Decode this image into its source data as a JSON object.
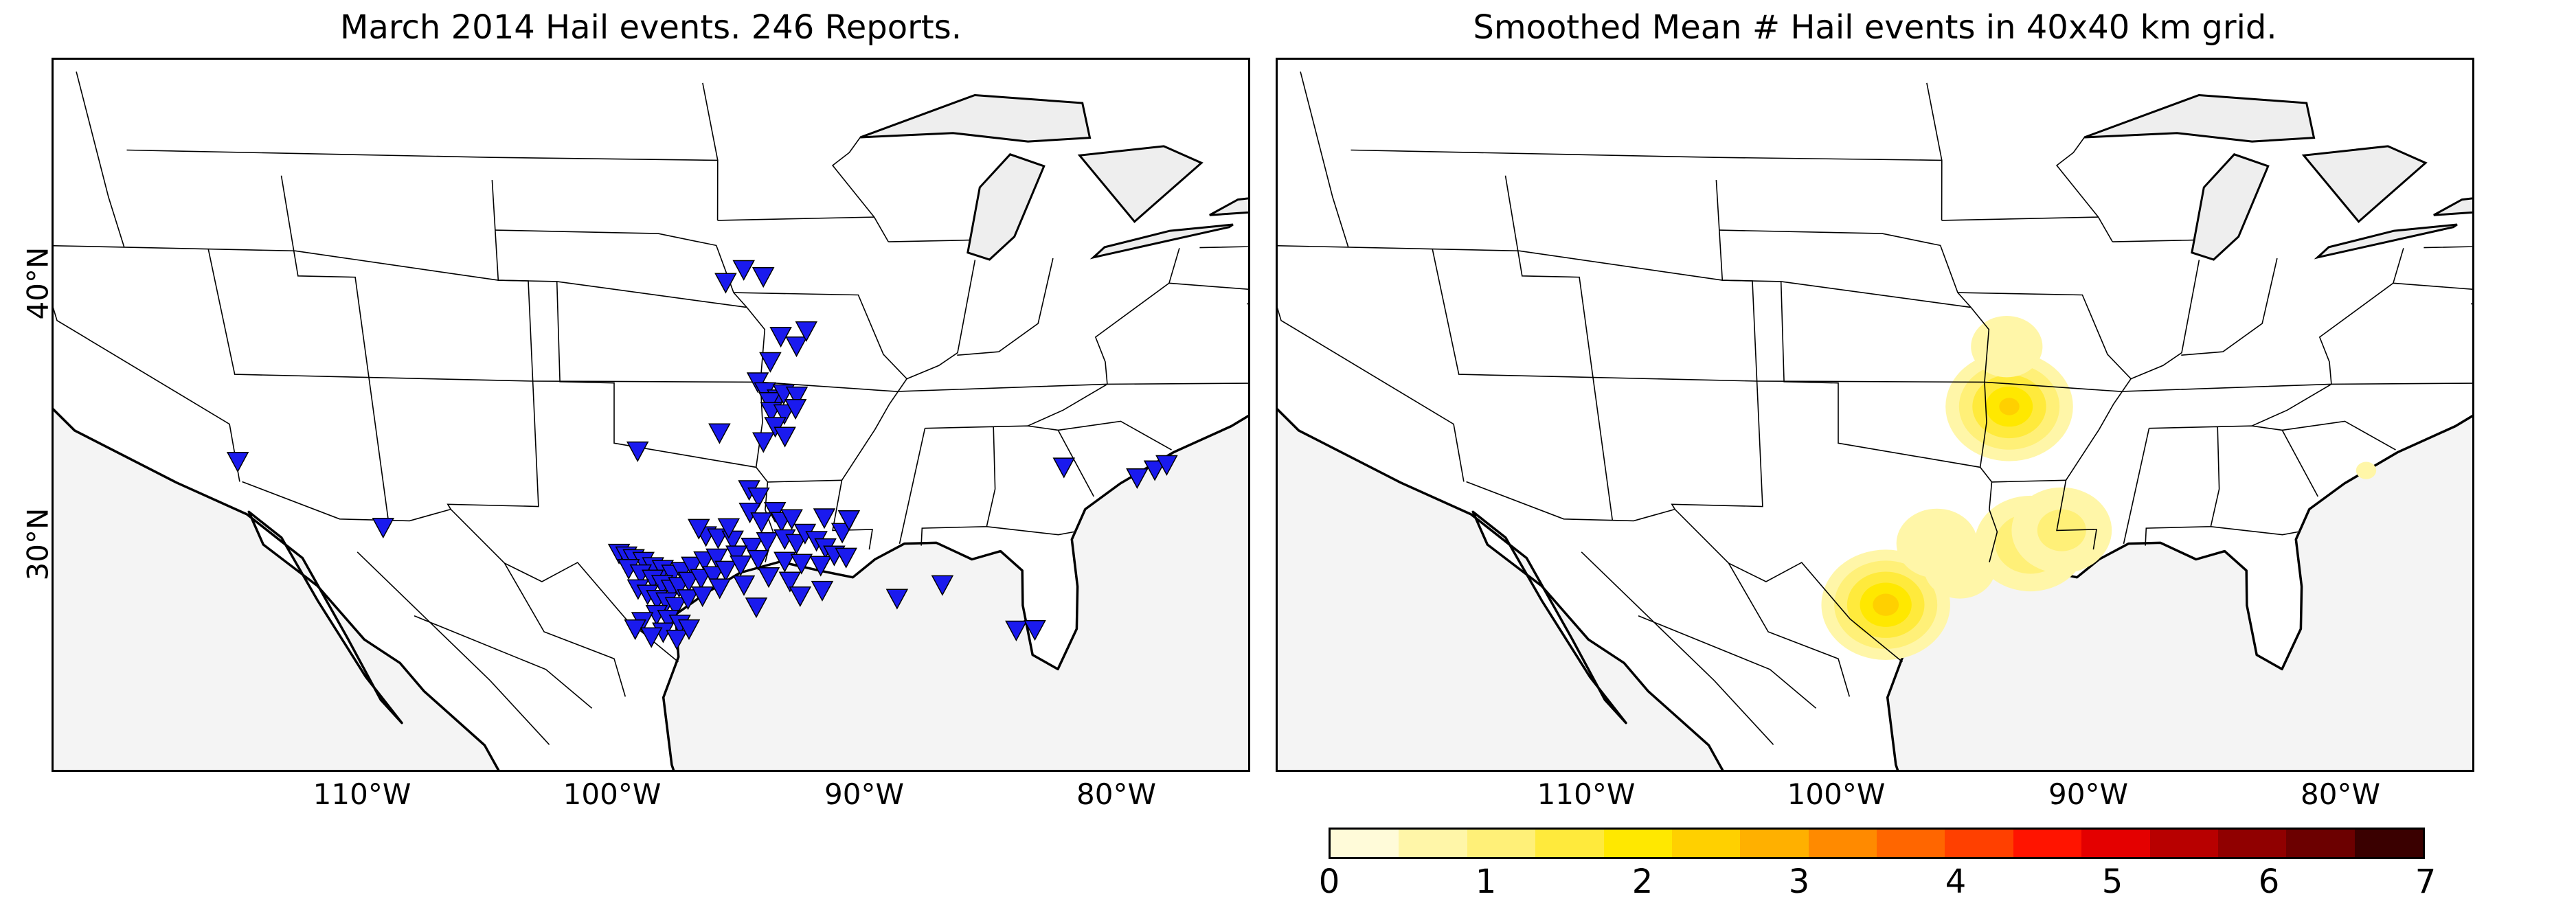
{
  "titles": {
    "left": "March 2014 Hail events. 246 Reports.",
    "right": "Smoothed Mean # Hail events in 40x40 km grid."
  },
  "axes": {
    "lon_labels": [
      "110°W",
      "100°W",
      "90°W",
      "80°W"
    ],
    "lat_labels": [
      "40°N",
      "30°N"
    ]
  },
  "colors": {
    "ocean": "#f4f4f4",
    "land": "#ffffff",
    "marker_fill": "#1a1aee",
    "marker_edge": "#000000",
    "coast": "#000000"
  },
  "colorbar": {
    "ticks": [
      "0",
      "1",
      "2",
      "3",
      "4",
      "5",
      "6",
      "7"
    ],
    "colors": [
      "#fffbd9",
      "#fff6a8",
      "#fff078",
      "#ffea3c",
      "#ffe800",
      "#ffd000",
      "#ffb000",
      "#ff8a00",
      "#ff6600",
      "#ff4000",
      "#ff1400",
      "#e40000",
      "#b80000",
      "#900000",
      "#6c0000",
      "#3a0000"
    ]
  },
  "hail_reports": {
    "count": 246,
    "marker_symbol": "inverted-triangle",
    "locations_lonlat": [
      [
        -114.6,
        33.5
      ],
      [
        -109.3,
        31.0
      ],
      [
        -96.1,
        41.0
      ],
      [
        -95.5,
        41.5
      ],
      [
        -94.8,
        41.2
      ],
      [
        -94.0,
        38.8
      ],
      [
        -93.4,
        38.4
      ],
      [
        -93.1,
        39.0
      ],
      [
        -94.3,
        37.8
      ],
      [
        -94.7,
        37.0
      ],
      [
        -94.4,
        36.6
      ],
      [
        -93.9,
        36.3
      ],
      [
        -94.2,
        36.2
      ],
      [
        -93.7,
        36.5
      ],
      [
        -93.2,
        36.4
      ],
      [
        -94.1,
        35.8
      ],
      [
        -93.6,
        35.7
      ],
      [
        -93.2,
        35.9
      ],
      [
        -93.9,
        35.2
      ],
      [
        -94.3,
        34.6
      ],
      [
        -93.5,
        34.8
      ],
      [
        -96.0,
        35.0
      ],
      [
        -99.1,
        34.3
      ],
      [
        -94.7,
        32.7
      ],
      [
        -94.3,
        32.4
      ],
      [
        -94.6,
        31.8
      ],
      [
        -93.6,
        31.8
      ],
      [
        -93.3,
        31.4
      ],
      [
        -96.3,
        30.9
      ],
      [
        -95.8,
        30.8
      ],
      [
        -95.2,
        30.7
      ],
      [
        -94.4,
        30.4
      ],
      [
        -93.8,
        30.6
      ],
      [
        -93.1,
        30.7
      ],
      [
        -92.6,
        30.5
      ],
      [
        -92.3,
        30.9
      ],
      [
        -91.8,
        30.6
      ],
      [
        -91.4,
        30.3
      ],
      [
        -90.8,
        30.9
      ],
      [
        -90.6,
        31.4
      ],
      [
        -91.6,
        31.5
      ],
      [
        -92.9,
        31.5
      ],
      [
        -94.1,
        31.4
      ],
      [
        -95.4,
        31.2
      ],
      [
        -96.6,
        31.2
      ],
      [
        -95.0,
        30.1
      ],
      [
        -94.1,
        29.9
      ],
      [
        -93.0,
        29.8
      ],
      [
        -92.3,
        29.7
      ],
      [
        -91.5,
        29.6
      ],
      [
        -91.0,
        30.0
      ],
      [
        -90.5,
        29.9
      ],
      [
        -99.8,
        30.2
      ],
      [
        -99.5,
        30.1
      ],
      [
        -99.2,
        30.0
      ],
      [
        -98.8,
        29.9
      ],
      [
        -98.4,
        29.7
      ],
      [
        -98.0,
        29.6
      ],
      [
        -97.6,
        29.4
      ],
      [
        -97.2,
        29.5
      ],
      [
        -96.8,
        29.7
      ],
      [
        -96.3,
        29.9
      ],
      [
        -95.8,
        30.0
      ],
      [
        -99.4,
        29.6
      ],
      [
        -98.9,
        29.4
      ],
      [
        -98.4,
        29.2
      ],
      [
        -98.0,
        29.0
      ],
      [
        -97.6,
        28.8
      ],
      [
        -97.3,
        28.9
      ],
      [
        -96.9,
        29.1
      ],
      [
        -96.4,
        29.2
      ],
      [
        -95.9,
        29.3
      ],
      [
        -95.4,
        29.5
      ],
      [
        -94.8,
        29.7
      ],
      [
        -99.0,
        28.8
      ],
      [
        -98.6,
        28.6
      ],
      [
        -98.2,
        28.4
      ],
      [
        -97.8,
        28.3
      ],
      [
        -97.4,
        28.1
      ],
      [
        -96.9,
        28.4
      ],
      [
        -96.3,
        28.5
      ],
      [
        -95.6,
        28.8
      ],
      [
        -94.6,
        28.9
      ],
      [
        -93.6,
        29.2
      ],
      [
        -92.7,
        29.0
      ],
      [
        -98.2,
        27.8
      ],
      [
        -97.7,
        27.6
      ],
      [
        -97.2,
        27.4
      ],
      [
        -98.8,
        27.5
      ],
      [
        -99.1,
        27.2
      ],
      [
        -97.9,
        27.1
      ],
      [
        -97.3,
        26.8
      ],
      [
        -96.8,
        27.2
      ],
      [
        -98.4,
        26.9
      ],
      [
        -94.0,
        28.0
      ],
      [
        -92.2,
        28.4
      ],
      [
        -91.3,
        28.6
      ],
      [
        -88.1,
        28.2
      ],
      [
        -86.3,
        28.7
      ],
      [
        -82.7,
        26.8
      ],
      [
        -81.9,
        26.8
      ],
      [
        -82.5,
        33.3
      ],
      [
        -79.5,
        32.8
      ],
      [
        -78.9,
        33.1
      ],
      [
        -78.5,
        33.3
      ]
    ]
  },
  "smoothed_field": {
    "units": "mean # hail events per 40x40 km grid cell",
    "blobs": [
      {
        "center_lonlat": [
          -93.6,
          36.0
        ],
        "peak": 2.3
      },
      {
        "center_lonlat": [
          -93.9,
          38.4
        ],
        "peak": 0.8
      },
      {
        "center_lonlat": [
          -92.2,
          30.5
        ],
        "peak": 1.5
      },
      {
        "center_lonlat": [
          -91.0,
          31.0
        ],
        "peak": 1.2
      },
      {
        "center_lonlat": [
          -98.0,
          28.2
        ],
        "peak": 2.4
      },
      {
        "center_lonlat": [
          -96.0,
          30.6
        ],
        "peak": 0.9
      },
      {
        "center_lonlat": [
          -95.0,
          29.6
        ],
        "peak": 0.8
      },
      {
        "center_lonlat": [
          -93.5,
          41.4
        ],
        "peak": 0.4
      },
      {
        "center_lonlat": [
          -79.4,
          33.1
        ],
        "peak": 0.5
      },
      {
        "center_lonlat": [
          -109.2,
          31.0
        ],
        "peak": 0.3
      },
      {
        "center_lonlat": [
          -114.6,
          33.5
        ],
        "peak": 0.2
      }
    ]
  }
}
